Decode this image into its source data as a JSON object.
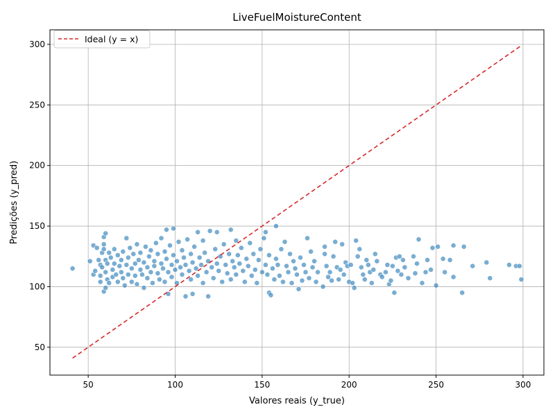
{
  "chart_data": {
    "type": "scatter",
    "title": "LiveFuelMoistureContent",
    "xlabel": "Valores reais (y_true)",
    "ylabel": "Predições (y_pred)",
    "xlim": [
      28,
      312
    ],
    "ylim": [
      27,
      312
    ],
    "xticks": [
      50,
      100,
      150,
      200,
      250,
      300
    ],
    "yticks": [
      50,
      100,
      150,
      200,
      250,
      300
    ],
    "grid": true,
    "legend_position": "top-left",
    "series": [
      {
        "name": "",
        "kind": "points",
        "color": "#1f77b4",
        "points": [
          [
            41,
            115
          ],
          [
            51,
            121
          ],
          [
            53,
            110
          ],
          [
            53,
            134
          ],
          [
            54,
            113
          ],
          [
            55,
            132
          ],
          [
            56,
            122
          ],
          [
            57,
            118
          ],
          [
            57,
            109
          ],
          [
            57,
            104
          ],
          [
            58,
            128
          ],
          [
            58,
            116
          ],
          [
            59,
            141
          ],
          [
            59,
            135
          ],
          [
            59,
            131
          ],
          [
            59,
            96
          ],
          [
            60,
            144
          ],
          [
            60,
            122
          ],
          [
            60,
            112
          ],
          [
            60,
            99
          ],
          [
            61,
            119
          ],
          [
            61,
            106
          ],
          [
            62,
            128
          ],
          [
            62,
            103
          ],
          [
            63,
            124
          ],
          [
            64,
            114
          ],
          [
            64,
            108
          ],
          [
            65,
            131
          ],
          [
            65,
            119
          ],
          [
            66,
            110
          ],
          [
            67,
            126
          ],
          [
            67,
            104
          ],
          [
            68,
            117
          ],
          [
            69,
            122
          ],
          [
            69,
            112
          ],
          [
            70,
            129
          ],
          [
            70,
            107
          ],
          [
            71,
            101
          ],
          [
            72,
            140
          ],
          [
            72,
            118
          ],
          [
            73,
            124
          ],
          [
            73,
            110
          ],
          [
            74,
            132
          ],
          [
            75,
            115
          ],
          [
            75,
            104
          ],
          [
            76,
            127
          ],
          [
            77,
            119
          ],
          [
            77,
            109
          ],
          [
            78,
            135
          ],
          [
            78,
            102
          ],
          [
            79,
            122
          ],
          [
            80,
            114
          ],
          [
            80,
            128
          ],
          [
            81,
            110
          ],
          [
            82,
            99
          ],
          [
            82,
            120
          ],
          [
            83,
            133
          ],
          [
            84,
            116
          ],
          [
            84,
            107
          ],
          [
            85,
            125
          ],
          [
            86,
            112
          ],
          [
            86,
            130
          ],
          [
            87,
            103
          ],
          [
            88,
            121
          ],
          [
            88,
            117
          ],
          [
            89,
            136
          ],
          [
            90,
            111
          ],
          [
            90,
            127
          ],
          [
            91,
            106
          ],
          [
            92,
            140
          ],
          [
            92,
            119
          ],
          [
            93,
            115
          ],
          [
            94,
            129
          ],
          [
            94,
            104
          ],
          [
            95,
            147
          ],
          [
            95,
            123
          ],
          [
            96,
            94
          ],
          [
            96,
            112
          ],
          [
            97,
            134
          ],
          [
            98,
            118
          ],
          [
            98,
            108
          ],
          [
            99,
            148
          ],
          [
            99,
            126
          ],
          [
            100,
            114
          ],
          [
            101,
            121
          ],
          [
            101,
            103
          ],
          [
            102,
            137
          ],
          [
            103,
            116
          ],
          [
            104,
            110
          ],
          [
            104,
            130
          ],
          [
            105,
            124
          ],
          [
            106,
            92
          ],
          [
            106,
            118
          ],
          [
            107,
            139
          ],
          [
            108,
            113
          ],
          [
            109,
            127
          ],
          [
            109,
            106
          ],
          [
            110,
            94
          ],
          [
            110,
            120
          ],
          [
            111,
            133
          ],
          [
            112,
            115
          ],
          [
            113,
            145
          ],
          [
            113,
            109
          ],
          [
            114,
            124
          ],
          [
            115,
            118
          ],
          [
            116,
            138
          ],
          [
            116,
            103
          ],
          [
            117,
            128
          ],
          [
            118,
            112
          ],
          [
            119,
            92
          ],
          [
            119,
            121
          ],
          [
            120,
            146
          ],
          [
            121,
            116
          ],
          [
            122,
            107
          ],
          [
            123,
            131
          ],
          [
            124,
            145
          ],
          [
            124,
            119
          ],
          [
            125,
            113
          ],
          [
            126,
            125
          ],
          [
            127,
            104
          ],
          [
            128,
            135
          ],
          [
            129,
            118
          ],
          [
            130,
            111
          ],
          [
            131,
            127
          ],
          [
            132,
            147
          ],
          [
            132,
            106
          ],
          [
            133,
            121
          ],
          [
            134,
            116
          ],
          [
            135,
            138
          ],
          [
            135,
            110
          ],
          [
            136,
            126
          ],
          [
            137,
            119
          ],
          [
            138,
            132
          ],
          [
            139,
            113
          ],
          [
            140,
            104
          ],
          [
            141,
            123
          ],
          [
            142,
            117
          ],
          [
            143,
            136
          ],
          [
            144,
            109
          ],
          [
            145,
            127
          ],
          [
            146,
            114
          ],
          [
            147,
            103
          ],
          [
            148,
            122
          ],
          [
            149,
            131
          ],
          [
            150,
            112
          ],
          [
            151,
            140
          ],
          [
            152,
            145
          ],
          [
            152,
            118
          ],
          [
            153,
            110
          ],
          [
            154,
            95
          ],
          [
            154,
            126
          ],
          [
            155,
            93
          ],
          [
            156,
            115
          ],
          [
            157,
            106
          ],
          [
            158,
            150
          ],
          [
            158,
            123
          ],
          [
            159,
            118
          ],
          [
            160,
            109
          ],
          [
            161,
            131
          ],
          [
            162,
            104
          ],
          [
            163,
            137
          ],
          [
            164,
            117
          ],
          [
            165,
            112
          ],
          [
            166,
            127
          ],
          [
            167,
            103
          ],
          [
            168,
            121
          ],
          [
            169,
            115
          ],
          [
            170,
            110
          ],
          [
            171,
            98
          ],
          [
            172,
            124
          ],
          [
            173,
            105
          ],
          [
            174,
            118
          ],
          [
            175,
            112
          ],
          [
            176,
            140
          ],
          [
            177,
            107
          ],
          [
            178,
            129
          ],
          [
            179,
            116
          ],
          [
            180,
            121
          ],
          [
            181,
            104
          ],
          [
            182,
            112
          ],
          [
            185,
            100
          ],
          [
            186,
            133
          ],
          [
            186,
            127
          ],
          [
            187,
            117
          ],
          [
            188,
            108
          ],
          [
            189,
            112
          ],
          [
            190,
            105
          ],
          [
            191,
            125
          ],
          [
            192,
            137
          ],
          [
            193,
            116
          ],
          [
            194,
            106
          ],
          [
            195,
            114
          ],
          [
            196,
            135
          ],
          [
            197,
            110
          ],
          [
            198,
            120
          ],
          [
            199,
            117
          ],
          [
            200,
            104
          ],
          [
            201,
            118
          ],
          [
            202,
            103
          ],
          [
            203,
            99
          ],
          [
            204,
            138
          ],
          [
            205,
            125
          ],
          [
            206,
            131
          ],
          [
            207,
            116
          ],
          [
            208,
            110
          ],
          [
            209,
            106
          ],
          [
            210,
            122
          ],
          [
            211,
            118
          ],
          [
            212,
            112
          ],
          [
            213,
            103
          ],
          [
            214,
            114
          ],
          [
            215,
            127
          ],
          [
            216,
            121
          ],
          [
            218,
            110
          ],
          [
            219,
            108
          ],
          [
            221,
            112
          ],
          [
            222,
            118
          ],
          [
            223,
            102
          ],
          [
            224,
            105
          ],
          [
            225,
            117
          ],
          [
            226,
            95
          ],
          [
            227,
            124
          ],
          [
            228,
            113
          ],
          [
            229,
            125
          ],
          [
            230,
            110
          ],
          [
            231,
            122
          ],
          [
            232,
            116
          ],
          [
            234,
            107
          ],
          [
            237,
            125
          ],
          [
            238,
            111
          ],
          [
            239,
            119
          ],
          [
            240,
            139
          ],
          [
            242,
            103
          ],
          [
            244,
            112
          ],
          [
            245,
            122
          ],
          [
            247,
            114
          ],
          [
            248,
            132
          ],
          [
            250,
            101
          ],
          [
            251,
            133
          ],
          [
            254,
            123
          ],
          [
            255,
            112
          ],
          [
            258,
            122
          ],
          [
            260,
            134
          ],
          [
            260,
            108
          ],
          [
            265,
            95
          ],
          [
            266,
            133
          ],
          [
            271,
            117
          ],
          [
            279,
            120
          ],
          [
            281,
            107
          ],
          [
            292,
            118
          ],
          [
            296,
            117
          ],
          [
            298,
            117
          ],
          [
            299,
            106
          ]
        ]
      },
      {
        "name": "Ideal (y = x)",
        "kind": "dashed-line",
        "color": "#d62728",
        "x": [
          41,
          299
        ],
        "y": [
          41,
          299
        ]
      }
    ]
  }
}
